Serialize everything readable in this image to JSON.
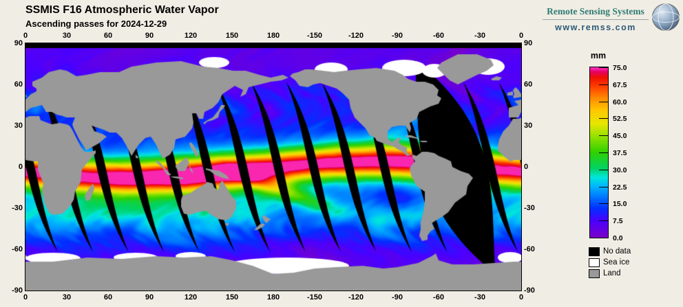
{
  "page": {
    "background": "#f0ede4"
  },
  "header": {
    "title": "SSMIS F16 Atmospheric Water Vapor",
    "subtitle": "Ascending passes for 2024-12-29"
  },
  "branding": {
    "name": "Remote Sensing Systems",
    "url": "www.remss.com"
  },
  "map_axes": {
    "lon_labels": [
      "0",
      "30",
      "60",
      "90",
      "120",
      "150",
      "180",
      "-150",
      "-120",
      "-90",
      "-60",
      "-30",
      "0"
    ],
    "lat_labels": [
      "90",
      "60",
      "30",
      "0",
      "-30",
      "-60",
      "-90"
    ]
  },
  "colorbar": {
    "unit": "mm",
    "min": 0,
    "max": 75,
    "tick_labels": [
      "75.0",
      "67.5",
      "60.0",
      "52.5",
      "45.0",
      "37.5",
      "30.0",
      "22.5",
      "15.0",
      "7.5",
      "0.0"
    ],
    "stops": [
      [
        0,
        "#7a00c8"
      ],
      [
        7.5,
        "#4a00ff"
      ],
      [
        13,
        "#0030ff"
      ],
      [
        18,
        "#0078ff"
      ],
      [
        22.5,
        "#00b4ff"
      ],
      [
        26.5,
        "#00e6dc"
      ],
      [
        30.5,
        "#00d264"
      ],
      [
        37.5,
        "#2fd000"
      ],
      [
        44,
        "#8ce000"
      ],
      [
        50,
        "#e6e600"
      ],
      [
        56,
        "#ffc800"
      ],
      [
        61,
        "#ff9000"
      ],
      [
        66,
        "#ff4600"
      ],
      [
        70.5,
        "#ef1000"
      ],
      [
        73,
        "#e60064"
      ],
      [
        75,
        "#ff32c8"
      ]
    ]
  },
  "legend": {
    "items": [
      {
        "label": "No data",
        "color": "#000000"
      },
      {
        "label": "Sea ice",
        "color": "#ffffff"
      },
      {
        "label": "Land",
        "color": "#999999"
      }
    ]
  },
  "chart_data": {
    "type": "heatmap",
    "title": "SSMIS F16 Atmospheric Water Vapor",
    "subtitle": "Ascending passes for 2024-12-29",
    "variable": "atmospheric water vapor",
    "units": "mm",
    "value_range": [
      0,
      75
    ],
    "colorbar_ticks": [
      75.0,
      67.5,
      60.0,
      52.5,
      45.0,
      37.5,
      30.0,
      22.5,
      15.0,
      7.5,
      0.0
    ],
    "projection": "equirectangular",
    "lon_domain_deg": [
      0,
      360
    ],
    "lat_domain_deg": [
      -90,
      90
    ],
    "lon_ticks_deg": [
      0,
      30,
      60,
      90,
      120,
      150,
      180,
      -150,
      -120,
      -90,
      -60,
      -30,
      0
    ],
    "lat_ticks_deg": [
      90,
      60,
      30,
      0,
      -30,
      -60,
      -90
    ],
    "zonal_mean_estimate_mm": {
      "lat": [
        -80,
        -60,
        -40,
        -20,
        0,
        10,
        20,
        40,
        60,
        80
      ],
      "value": [
        2,
        7,
        17,
        35,
        58,
        60,
        38,
        16,
        7,
        2
      ]
    },
    "no_data_features": [
      "polar cap north of ~87N shown black",
      "14 lens-shaped gaps between ascending orbit swaths shown black",
      "wide unsampled seam over the Atlantic near 50W"
    ],
    "masks": {
      "no_data": "#000000",
      "sea_ice": "#ffffff",
      "land": "#999999"
    }
  }
}
